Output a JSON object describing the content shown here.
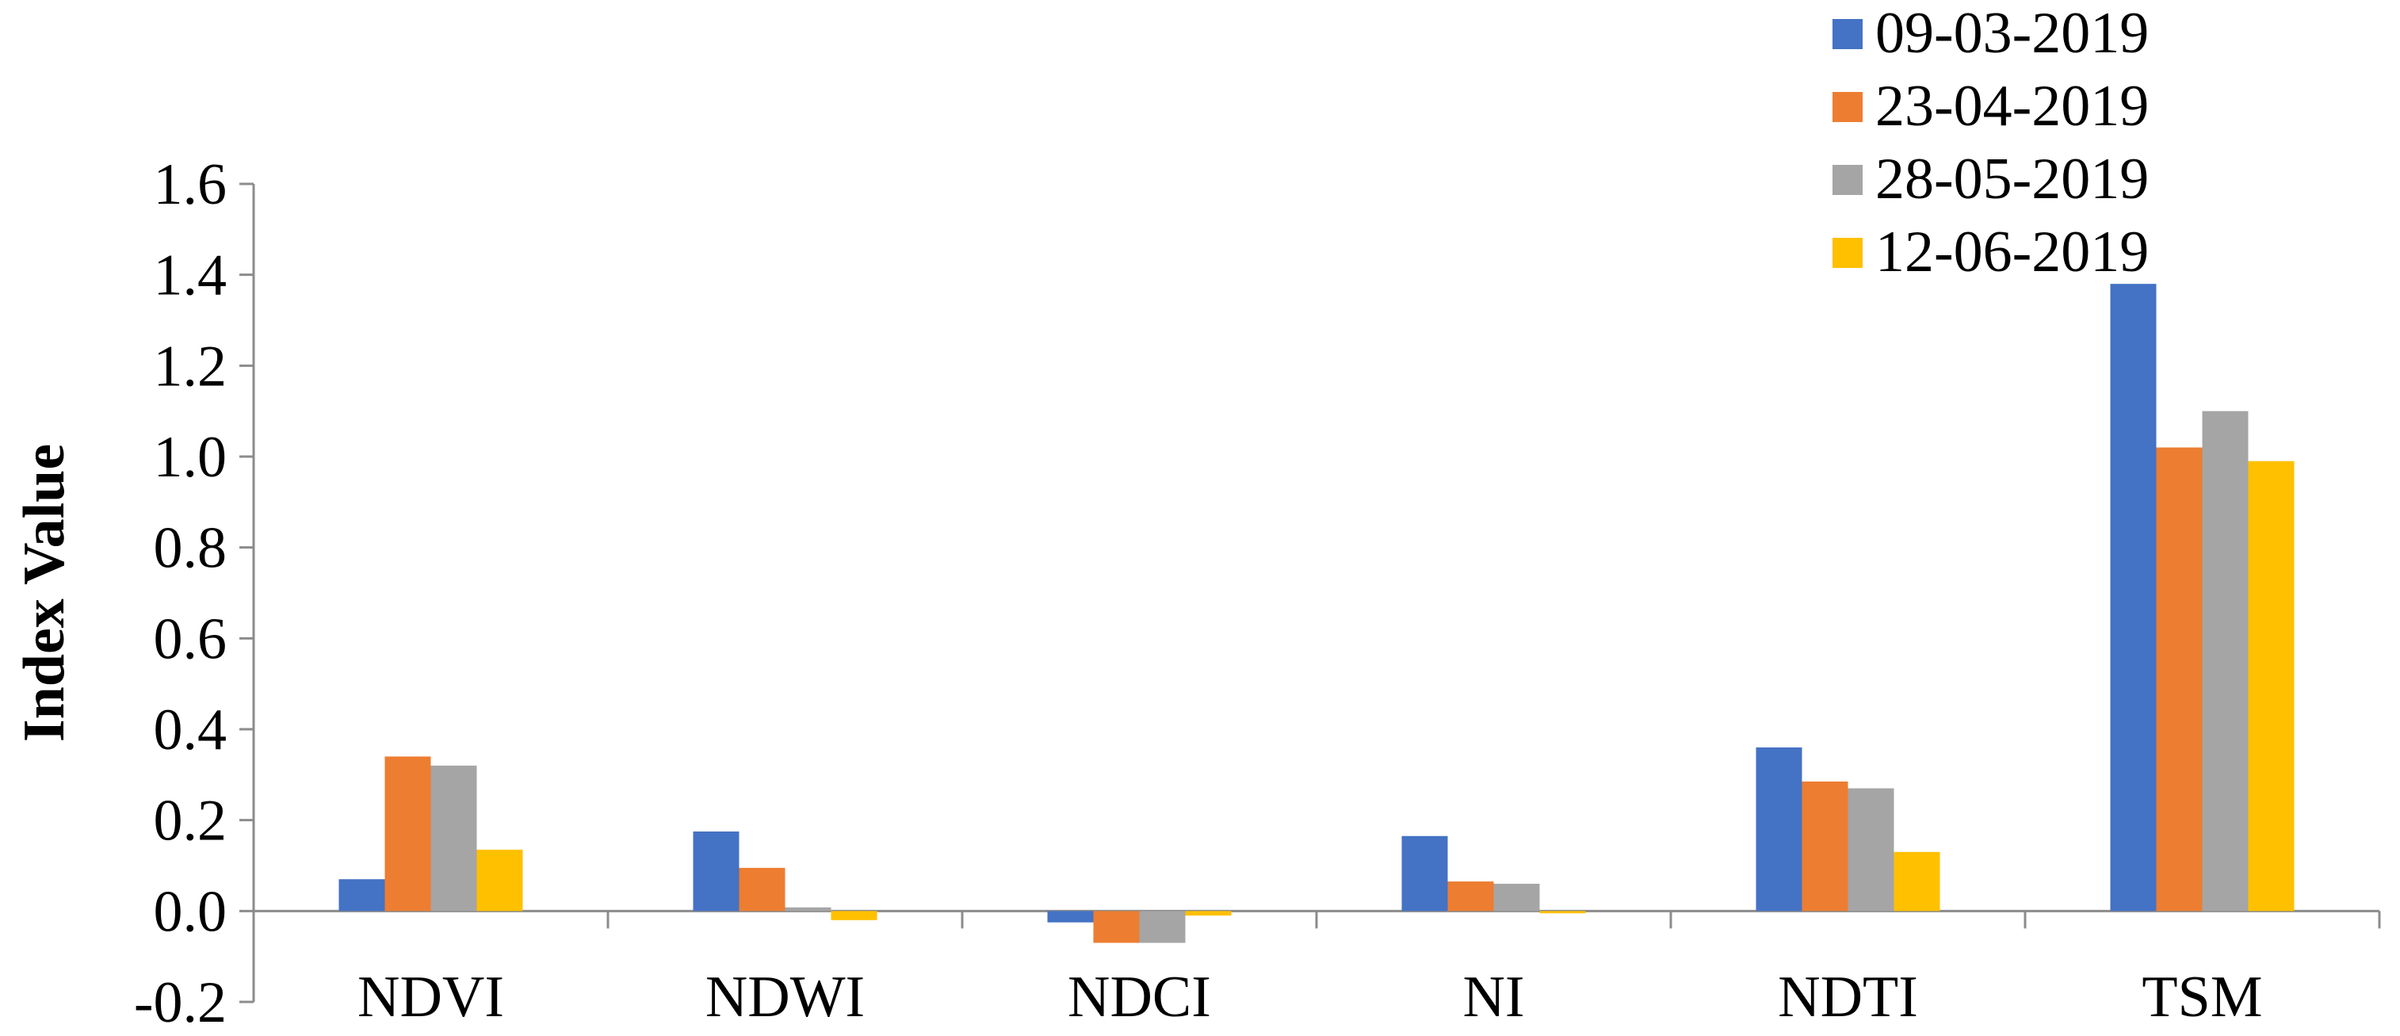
{
  "chart_data": {
    "type": "bar",
    "title": "",
    "xlabel": "",
    "ylabel": "Index Value",
    "ylim": [
      -0.2,
      1.6
    ],
    "yticks": [
      "1.6",
      "1.4",
      "1.2",
      "1.0",
      "0.8",
      "0.6",
      "0.4",
      "0.2",
      "0.0",
      "-0.2"
    ],
    "categories": [
      "NDVI",
      "NDWI",
      "NDCI",
      "NI",
      "NDTI",
      "TSM"
    ],
    "grid": false,
    "legend_position": "top-right",
    "series": [
      {
        "name": "09-03-2019",
        "color": "#4472C4",
        "values": [
          0.07,
          0.175,
          -0.025,
          0.165,
          0.36,
          1.38
        ]
      },
      {
        "name": "23-04-2019",
        "color": "#ED7D31",
        "values": [
          0.34,
          0.095,
          -0.07,
          0.065,
          0.285,
          1.02
        ]
      },
      {
        "name": "28-05-2019",
        "color": "#A5A5A5",
        "values": [
          0.32,
          0.008,
          -0.07,
          0.06,
          0.27,
          1.1
        ]
      },
      {
        "name": "12-06-2019",
        "color": "#FFC000",
        "values": [
          0.135,
          -0.02,
          -0.01,
          -0.005,
          0.13,
          0.99
        ]
      }
    ]
  }
}
